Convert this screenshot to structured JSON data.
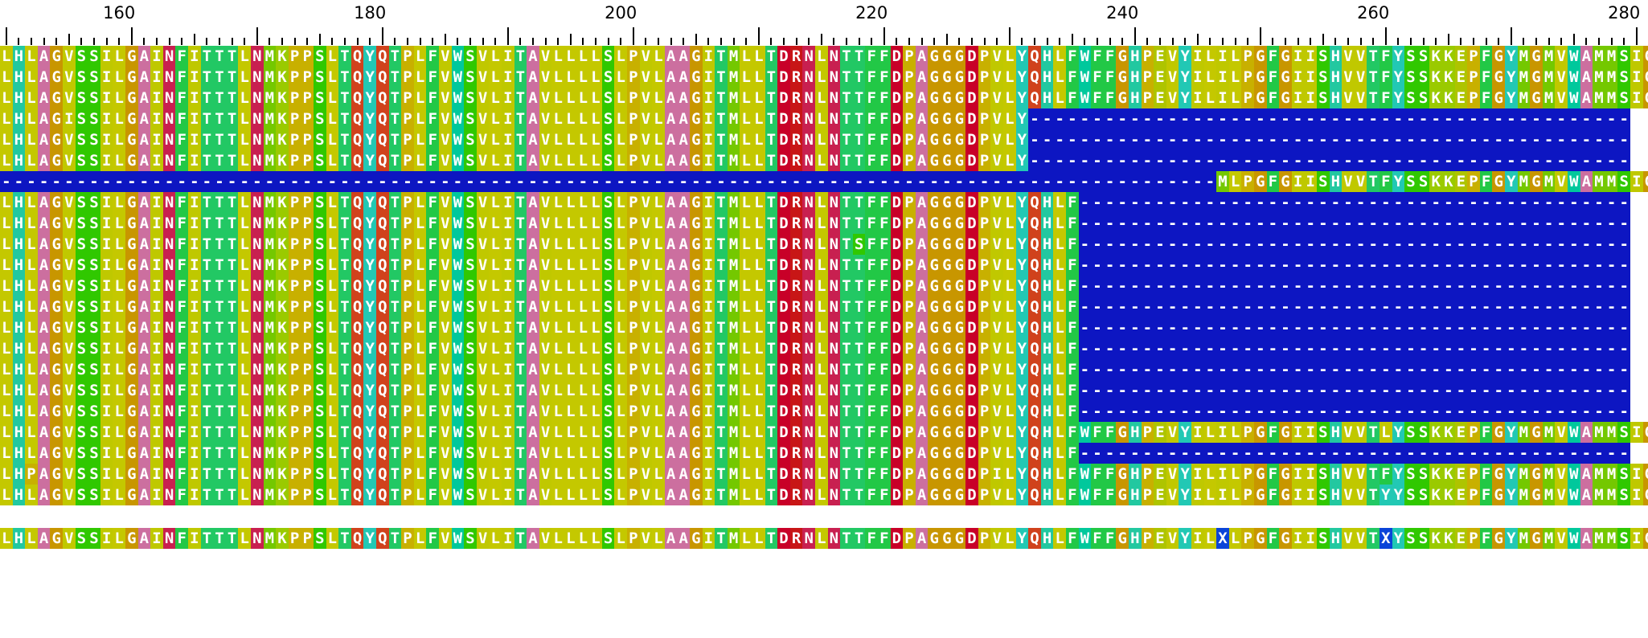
{
  "ruler": {
    "position_labels": [
      "160",
      "180",
      "200",
      "220",
      "240",
      "260",
      "280"
    ]
  },
  "alignment": {
    "residue_colors": {
      "A": "#cc6f9f",
      "B": "#ddc800",
      "C": "#c98a3c",
      "D": "#c80028",
      "E": "#aec400",
      "F": "#22c846",
      "G": "#c89600",
      "H": "#22c8a0",
      "I": "#bfc800",
      "K": "#9aca00",
      "L": "#c4c800",
      "M": "#74c800",
      "N": "#c82050",
      "P": "#c8b000",
      "Q": "#d0421c",
      "R": "#c81616",
      "S": "#30c800",
      "T": "#22c864",
      "V": "#c0c800",
      "W": "#00c89c",
      "X": "#0a44d8",
      "Y": "#22c8b4",
      "gap": "#0d16c2"
    },
    "rows": [
      "LHLAGVSSILGAINFITTTLNMKPPSLTQYQTPLFVWSVLITAVLLLLSLPVLAAGITMLLTDRNLNTTFFDPAGGGDPVLYQHLFWFFGHPEVYILILPGFGIISHVVTFYSSKKEPFGYMGMVWAMMSIG",
      "LHLAGVSSILGAINFITTTLNMKPPSLTQYQTPLFVWSVLITAVLLLLSLPVLAAGITMLLTDRNLNTTFFDPAGGGDPVLYQHLFWFFGHPEVYILILPGFGIISHVVTFYSSKKEPFGYMGMVWAMMSIG",
      "LHLAGVSSILGAINFITTTLNMKPPSLTQYQTPLFVWSVLITAVLLLLSLPVLAAGITMLLTDRNLNTTFFDPAGGGDPVLYQHLFWFFGHPEVYILILPGFGIISHVVTFYSSKKEPFGYMGMVWAMMSIG",
      "LHLAGISSILGAINFITTTLNMKPPSLTQYQTPLFVWSVLITAVLLLLSLPVLAAGITMLLTDRNLNTTFFDPAGGGDPVLY------------------------------------------------",
      "LHLAGVSSILGAINFITTTLNMKPPSLTQYQTPLFVWSVLITAVLLLLSLPVLAAGITMLLTDRNLNTTFFDPAGGGDPVLY------------------------------------------------",
      "LHLAGVSSILGAINFITTTLNMKPPSLTQYQTPLFVWSVLITAVLLLLSLPVLAAGITMLLTDRNLNTTFFDPAGGGDPVLY------------------------------------------------",
      "-------------------------------------------------------------------------------------------------MLPGFGIISHVVTFYSSKKEPFGYMGMVWAMMSIG",
      "LHLAGVSSILGAINFITTTLNMKPPSLTQYQTPLFVWSVLITAVLLLLSLPVLAAGITMLLTDRNLNTTFFDPAGGGDPVLYQHLF--------------------------------------------",
      "LHLAGVSSILGAINFITTTLNMKPPSLTQYQTPLFVWSVLITAVLLLLSLPVLAAGITMLLTDRNLNTTFFDPAGGGDPVLYQHLF--------------------------------------------",
      "LHLAGVSSILGAINFITTTLNMKPPSLTQYQTPLFVWSVLITAVLLLLSLPVLAAGITMLLTDRNLNTSFFDPAGGGDPVLYQHLF--------------------------------------------",
      "LHLAGVSSILGAINFITTTLNMKPPSLTQYQTPLFVWSVLITAVLLLLSLPVLAAGITMLLTDRNLNTTFFDPAGGGDPVLYQHLF--------------------------------------------",
      "LHLAGVSSILGAINFITTTLNMKPPSLTQYQTPLFVWSVLITAVLLLLSLPVLAAGITMLLTDRNLNTTFFDPAGGGDPVLYQHLF--------------------------------------------",
      "LHLAGVSSILGAINFITTTLNMKPPSLTQYQTPLFVWSVLITAVLLLLSLPVLAAGITMLLTDRNLNTTFFDPAGGGDPVLYQHLF--------------------------------------------",
      "LHLAGVSSILGAINFITTTLNMKPPSLTQYQTPLFVWSVLITAVLLLLSLPVLAAGITMLLTDRNLNTTFFDPAGGGDPVLYQHLF--------------------------------------------",
      "LHLAGVSSILGAINFITTTLNMKPPSLTQYQTPLFVWSVLITAVLLLLSLPVLAAGITMLLTDRNLNTTFFDPAGGGDPVLYQHLF--------------------------------------------",
      "LHLAGVSSILGAINFITTTLNMKPPSLTQYQTPLFVWSVLITAVLLLLSLPVLAAGITMLLTDRNLNTTFFDPAGGGDPVLYQHLF--------------------------------------------",
      "LHLAGVSSILGAINFITTTLNMKPPSLTQYQTPLFVWSVLITAVLLLLSLPVLAAGITMLLTDRNLNTTFFDPAGGGDPVLYQHLF--------------------------------------------",
      "LHLAGVSSILGAINFITTTLNMKPPSLTQYQTPLFVWSVLITAVLLLLSLPVLAAGITMLLTDRNLNTTFFDPAGGGDPVLYQHLF--------------------------------------------",
      "LHLAGVSSILGAINFITTTLNMKPPSLTQYQTPLFVWSVLITAVLLLLSLPVLAAGITMLLTDRNLNTTFFDPAGGGDPVLYQHLFWFFGHPEVYILILPGFGIISHVVTLYSSKKEPFGYMGMVWAMMSIG",
      "LHLAGVSSILGAINFITTTLNMKPPSLTQYQTPLFVWSVLITAVLLLLSLPVLAAGITMLLTDRNLNTTFFDPAGGGDPVLYQHLF--------------------------------------------",
      "LHPAGVSSILGAINFITTTLNMKPPSLTQYQTPLFVWSVLITAVLLLLSLPVLAAGITMLLTDRNLNTTFFDPAGGGDPILYQHLFWFFGHPEVYILILPGFGIISHVVTFYSSKKEPFGYMGMVWAMMSIG",
      "LHLAGVSSILGAINFITTTLNMKPPSLTQYQTPLFVWSVLITAVLLLLSLPVLAAGITMLLTDRNLNTTFFDPAGGGDPVLYQHLFWFFGHPEVYILILPGFGIISHVVTYYSSKKEPFGYMGMVWAMMSIG"
    ],
    "consensus": "LHLAGVSSILGAINFITTTLNMKPPSLTQYQTPLFVWSVLITAVLLLLSLPVLAAGITMLLTDRNLNTTFFDPAGGGDPVLYQHLFWFFGHPEVYILXLPGFGIISHVVTXYSSKKEPFGYMGMVWAMMSIG"
  }
}
